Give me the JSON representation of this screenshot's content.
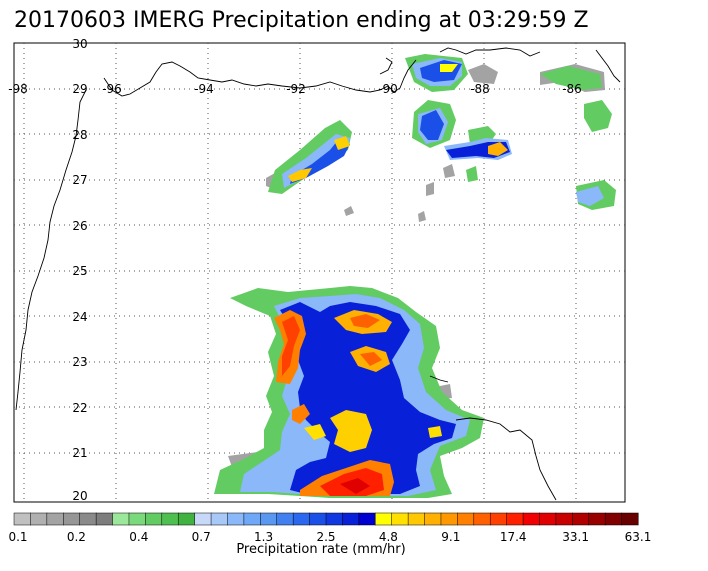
{
  "title": "20170603 IMERG Precipitation ending at 03:29:59 Z",
  "map": {
    "lon_labels": [
      "-98",
      "-96",
      "-94",
      "-92",
      "-90",
      "-88",
      "-86"
    ],
    "lat_labels": [
      "30",
      "29",
      "28",
      "27",
      "26",
      "25",
      "24",
      "23",
      "22",
      "21",
      "20"
    ]
  },
  "colorbar": {
    "title": "Precipitation rate (mm/hr)",
    "tick_labels": [
      "0.1",
      "0.2",
      "0.4",
      "0.7",
      "1.3",
      "2.5",
      "4.8",
      "9.1",
      "17.4",
      "33.1",
      "63.1"
    ],
    "colors": [
      "#c0c0c0",
      "#b0b0b0",
      "#a3a3a3",
      "#969696",
      "#8a8a8a",
      "#7d7d7d",
      "#9be89b",
      "#7ad97a",
      "#62cc62",
      "#4fbf4f",
      "#40b240",
      "#c8d8f8",
      "#a8c8f8",
      "#8ab8f8",
      "#70a8f8",
      "#5898f0",
      "#4080f0",
      "#2a68f0",
      "#1a50e8",
      "#1038e0",
      "#0820d8",
      "#0000d0",
      "#ffff00",
      "#ffe000",
      "#ffc800",
      "#ffb000",
      "#ff9800",
      "#ff8000",
      "#ff6000",
      "#ff4000",
      "#ff2000",
      "#f00000",
      "#e00000",
      "#c80000",
      "#b00000",
      "#980000",
      "#800000",
      "#680000"
    ]
  }
}
